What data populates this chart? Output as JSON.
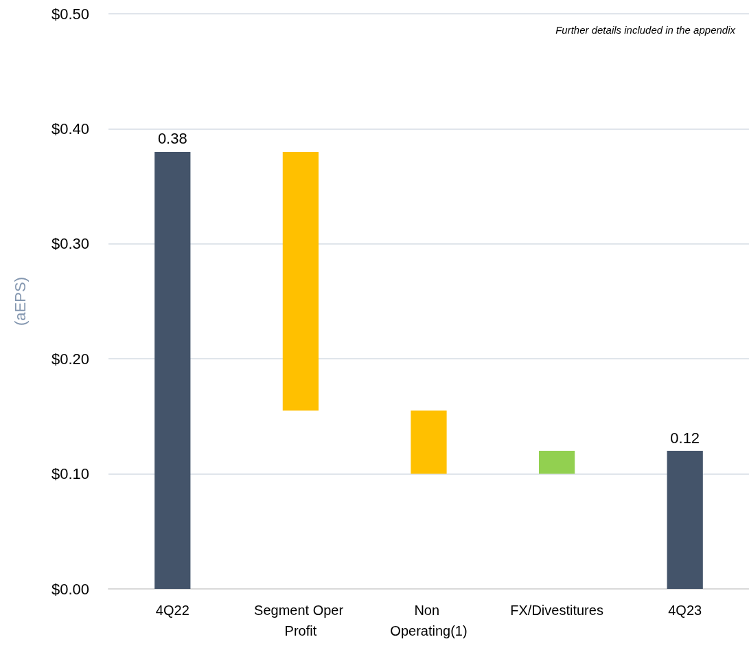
{
  "chart_data": {
    "type": "bar",
    "ylabel": "(aEPS)",
    "categories": [
      "4Q22",
      "Segment Oper Profit",
      "Non Operating(1)",
      "FX/Divestitures",
      "4Q23"
    ],
    "base": [
      0,
      0.38,
      0.155,
      0.1,
      0
    ],
    "values": [
      0.38,
      -0.225,
      -0.055,
      0.02,
      0.12
    ],
    "colors": [
      "#44546a",
      "#ffc000",
      "#ffc000",
      "#92d050",
      "#44546a"
    ],
    "value_labels": [
      "0.38",
      null,
      null,
      null,
      "0.12"
    ],
    "ylim": [
      0,
      0.5
    ],
    "yticks": [
      {
        "value": 0,
        "label": "$0.00"
      },
      {
        "value": 0.1,
        "label": "$0.10"
      },
      {
        "value": 0.2,
        "label": "$0.20"
      },
      {
        "value": 0.3,
        "label": "$0.30"
      },
      {
        "value": 0.4,
        "label": "$0.40"
      },
      {
        "value": 0.5,
        "label": "$0.50"
      }
    ],
    "grid": "y",
    "annotations": [
      "Further details included in the appendix"
    ]
  }
}
